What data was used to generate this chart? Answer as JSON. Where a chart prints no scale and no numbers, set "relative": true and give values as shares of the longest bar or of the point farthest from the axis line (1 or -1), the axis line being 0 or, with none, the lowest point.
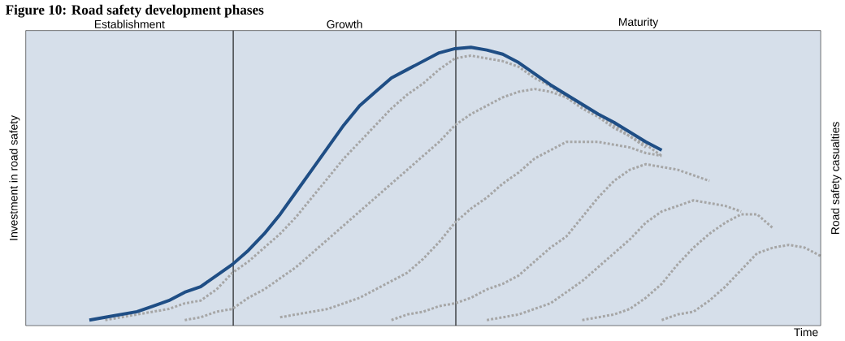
{
  "chart_data": {
    "type": "line",
    "title": "Figure 10: Road safety development phases",
    "relative": true,
    "xlabel": "Time",
    "ylabel": "Investment in road safety",
    "y2label": "Road safety casualties",
    "tick_labels": false,
    "categories": [
      null,
      null,
      null,
      null,
      null,
      null,
      null,
      null,
      null,
      null,
      null,
      null,
      null,
      null,
      null,
      null,
      null,
      null,
      null,
      null,
      null,
      null,
      null,
      null,
      null,
      null,
      null,
      null,
      null,
      null,
      null,
      null,
      null,
      null,
      null,
      null,
      null,
      null,
      null,
      null,
      null,
      null,
      null,
      null,
      null,
      null,
      null,
      null,
      null,
      null,
      null
    ],
    "annotations": [
      "Establishment",
      "Growth",
      "Maturity"
    ],
    "series": [
      {
        "color": "#a6a6a6",
        "line_style": "dotted",
        "values": [
          null,
          null,
          null,
          null,
          null,
          0.02,
          0.03,
          0.04,
          0.05,
          0.06,
          0.08,
          0.09,
          0.13,
          0.19,
          0.23,
          0.28,
          0.33,
          0.39,
          0.46,
          0.53,
          0.6,
          0.66,
          0.72,
          0.78,
          0.83,
          0.87,
          0.92,
          0.96,
          0.97,
          0.96,
          0.95,
          0.93,
          0.89,
          0.86,
          0.82,
          0.78,
          0.75,
          0.71,
          0.68,
          0.64,
          null,
          null,
          null,
          null,
          null,
          null,
          null,
          null,
          null,
          null,
          null
        ]
      },
      {
        "color": "#a6a6a6",
        "line_style": "dotted",
        "values": [
          null,
          null,
          null,
          null,
          null,
          null,
          null,
          null,
          null,
          null,
          0.02,
          0.03,
          0.05,
          0.06,
          0.1,
          0.13,
          0.17,
          0.21,
          0.26,
          0.31,
          0.36,
          0.41,
          0.46,
          0.51,
          0.56,
          0.61,
          0.66,
          0.72,
          0.76,
          0.79,
          0.82,
          0.84,
          0.85,
          0.84,
          0.82,
          0.79,
          0.76,
          0.72,
          0.68,
          0.65,
          0.61,
          null,
          null,
          null,
          null,
          null,
          null,
          null,
          null,
          null,
          null
        ]
      },
      {
        "color": "#a6a6a6",
        "line_style": "dotted",
        "values": [
          null,
          null,
          null,
          null,
          null,
          null,
          null,
          null,
          null,
          null,
          null,
          null,
          null,
          null,
          null,
          null,
          0.03,
          0.04,
          0.05,
          0.06,
          0.08,
          0.1,
          0.13,
          0.16,
          0.19,
          0.24,
          0.3,
          0.37,
          0.42,
          0.46,
          0.51,
          0.55,
          0.6,
          0.63,
          0.66,
          0.66,
          0.66,
          0.65,
          0.64,
          0.62,
          0.61,
          null,
          null,
          null,
          null,
          null,
          null,
          null,
          null,
          null,
          null
        ]
      },
      {
        "color": "#a6a6a6",
        "line_style": "dotted",
        "values": [
          null,
          null,
          null,
          null,
          null,
          null,
          null,
          null,
          null,
          null,
          null,
          null,
          null,
          null,
          null,
          null,
          null,
          null,
          null,
          null,
          null,
          null,
          null,
          0.02,
          0.04,
          0.05,
          0.07,
          0.08,
          0.1,
          0.13,
          0.15,
          0.18,
          0.23,
          0.28,
          0.32,
          0.39,
          0.46,
          0.52,
          0.56,
          0.58,
          0.57,
          0.56,
          0.54,
          0.52,
          null,
          null,
          null,
          null,
          null,
          null,
          null
        ]
      },
      {
        "color": "#a6a6a6",
        "line_style": "dotted",
        "values": [
          null,
          null,
          null,
          null,
          null,
          null,
          null,
          null,
          null,
          null,
          null,
          null,
          null,
          null,
          null,
          null,
          null,
          null,
          null,
          null,
          null,
          null,
          null,
          null,
          null,
          null,
          null,
          null,
          null,
          0.02,
          0.03,
          0.04,
          0.06,
          0.08,
          0.12,
          0.16,
          0.21,
          0.26,
          0.31,
          0.37,
          0.41,
          0.43,
          0.45,
          0.44,
          0.43,
          0.41,
          null,
          null,
          null,
          null,
          null
        ]
      },
      {
        "color": "#a6a6a6",
        "line_style": "dotted",
        "values": [
          null,
          null,
          null,
          null,
          null,
          null,
          null,
          null,
          null,
          null,
          null,
          null,
          null,
          null,
          null,
          null,
          null,
          null,
          null,
          null,
          null,
          null,
          null,
          null,
          null,
          null,
          null,
          null,
          null,
          null,
          null,
          null,
          null,
          null,
          null,
          0.02,
          0.03,
          0.04,
          0.06,
          0.1,
          0.15,
          0.22,
          0.28,
          0.33,
          0.37,
          0.4,
          0.4,
          0.35,
          null,
          null,
          null
        ]
      },
      {
        "color": "#a6a6a6",
        "line_style": "dotted",
        "values": [
          null,
          null,
          null,
          null,
          null,
          null,
          null,
          null,
          null,
          null,
          null,
          null,
          null,
          null,
          null,
          null,
          null,
          null,
          null,
          null,
          null,
          null,
          null,
          null,
          null,
          null,
          null,
          null,
          null,
          null,
          null,
          null,
          null,
          null,
          null,
          null,
          null,
          null,
          null,
          null,
          0.02,
          0.04,
          0.05,
          0.09,
          0.14,
          0.2,
          0.26,
          0.28,
          0.29,
          0.28,
          0.25
        ]
      },
      {
        "color": "#1f4e85",
        "line_style": "solid",
        "values": [
          null,
          null,
          null,
          null,
          0.02,
          0.03,
          0.04,
          0.05,
          0.07,
          0.09,
          0.12,
          0.14,
          0.18,
          0.22,
          0.27,
          0.33,
          0.4,
          0.48,
          0.56,
          0.64,
          0.72,
          0.79,
          0.84,
          0.89,
          0.92,
          0.95,
          0.98,
          0.995,
          1,
          0.99,
          0.975,
          0.945,
          0.905,
          0.865,
          0.83,
          0.795,
          0.76,
          0.73,
          0.695,
          0.66,
          0.63,
          null,
          null,
          null,
          null,
          null,
          null,
          null,
          null,
          null,
          null
        ]
      }
    ]
  }
}
